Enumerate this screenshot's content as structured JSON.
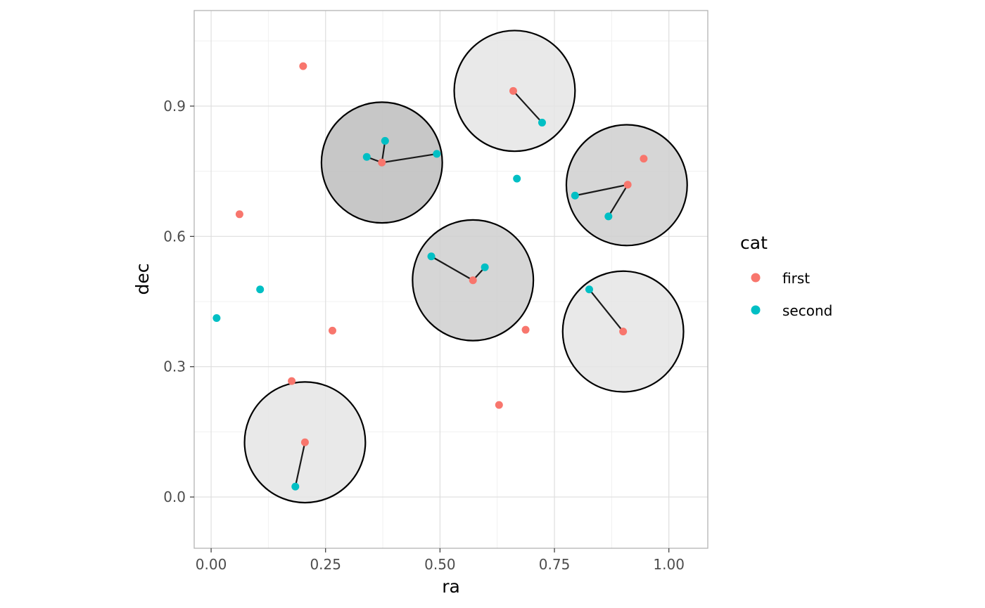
{
  "chart_data": {
    "type": "scatter",
    "xlabel": "ra",
    "ylabel": "dec",
    "xlim": [
      -0.037,
      1.085
    ],
    "ylim": [
      -0.118,
      1.12
    ],
    "x_ticks": [
      {
        "value": 0.0,
        "label": "0.00"
      },
      {
        "value": 0.25,
        "label": "0.25"
      },
      {
        "value": 0.5,
        "label": "0.50"
      },
      {
        "value": 0.75,
        "label": "0.75"
      },
      {
        "value": 1.0,
        "label": "1.00"
      }
    ],
    "y_ticks": [
      {
        "value": 0.0,
        "label": "0.0"
      },
      {
        "value": 0.3,
        "label": "0.3"
      },
      {
        "value": 0.6,
        "label": "0.6"
      },
      {
        "value": 0.9,
        "label": "0.9"
      }
    ],
    "x_minor": [
      0.125,
      0.375,
      0.625,
      0.875
    ],
    "y_minor": [
      0.15,
      0.45,
      0.75,
      1.05
    ],
    "grid": true,
    "legend": {
      "title": "cat",
      "position": "right",
      "entries": [
        {
          "label": "first",
          "color": "#F8766D"
        },
        {
          "label": "second",
          "color": "#00BFC4"
        }
      ]
    },
    "circle_radius": 0.132,
    "circles": [
      {
        "ra": 0.663,
        "dec": 0.935,
        "fill": "#e5e5e5"
      },
      {
        "ra": 0.373,
        "dec": 0.77,
        "fill": "#bdbdbd"
      },
      {
        "ra": 0.908,
        "dec": 0.718,
        "fill": "#cfcfcf"
      },
      {
        "ra": 0.572,
        "dec": 0.499,
        "fill": "#cfcfcf"
      },
      {
        "ra": 0.9,
        "dec": 0.381,
        "fill": "#e5e5e5"
      },
      {
        "ra": 0.205,
        "dec": 0.126,
        "fill": "#e5e5e5"
      }
    ],
    "points": [
      {
        "ra": 0.201,
        "dec": 0.992,
        "cat": "first"
      },
      {
        "ra": 0.062,
        "dec": 0.651,
        "cat": "first"
      },
      {
        "ra": 0.265,
        "dec": 0.383,
        "cat": "first"
      },
      {
        "ra": 0.176,
        "dec": 0.267,
        "cat": "first"
      },
      {
        "ra": 0.629,
        "dec": 0.212,
        "cat": "first"
      },
      {
        "ra": 0.687,
        "dec": 0.385,
        "cat": "first"
      },
      {
        "ra": 0.945,
        "dec": 0.779,
        "cat": "first"
      },
      {
        "ra": 0.66,
        "dec": 0.935,
        "cat": "first"
      },
      {
        "ra": 0.373,
        "dec": 0.77,
        "cat": "first"
      },
      {
        "ra": 0.91,
        "dec": 0.719,
        "cat": "first"
      },
      {
        "ra": 0.572,
        "dec": 0.499,
        "cat": "first"
      },
      {
        "ra": 0.9,
        "dec": 0.381,
        "cat": "first"
      },
      {
        "ra": 0.205,
        "dec": 0.126,
        "cat": "first"
      },
      {
        "ra": 0.668,
        "dec": 0.733,
        "cat": "second"
      },
      {
        "ra": 0.107,
        "dec": 0.478,
        "cat": "second"
      },
      {
        "ra": 0.012,
        "dec": 0.412,
        "cat": "second"
      },
      {
        "ra": 0.723,
        "dec": 0.862,
        "cat": "second"
      },
      {
        "ra": 0.38,
        "dec": 0.82,
        "cat": "second"
      },
      {
        "ra": 0.34,
        "dec": 0.783,
        "cat": "second"
      },
      {
        "ra": 0.493,
        "dec": 0.79,
        "cat": "second"
      },
      {
        "ra": 0.795,
        "dec": 0.694,
        "cat": "second"
      },
      {
        "ra": 0.868,
        "dec": 0.646,
        "cat": "second"
      },
      {
        "ra": 0.481,
        "dec": 0.554,
        "cat": "second"
      },
      {
        "ra": 0.598,
        "dec": 0.529,
        "cat": "second"
      },
      {
        "ra": 0.826,
        "dec": 0.478,
        "cat": "second"
      },
      {
        "ra": 0.184,
        "dec": 0.024,
        "cat": "second"
      }
    ],
    "links": [
      {
        "from": [
          0.66,
          0.935
        ],
        "to": [
          0.723,
          0.862
        ]
      },
      {
        "from": [
          0.373,
          0.77
        ],
        "to": [
          0.38,
          0.82
        ]
      },
      {
        "from": [
          0.373,
          0.77
        ],
        "to": [
          0.34,
          0.783
        ]
      },
      {
        "from": [
          0.373,
          0.77
        ],
        "to": [
          0.493,
          0.79
        ]
      },
      {
        "from": [
          0.91,
          0.719
        ],
        "to": [
          0.795,
          0.694
        ]
      },
      {
        "from": [
          0.91,
          0.719
        ],
        "to": [
          0.868,
          0.646
        ]
      },
      {
        "from": [
          0.572,
          0.499
        ],
        "to": [
          0.481,
          0.554
        ]
      },
      {
        "from": [
          0.572,
          0.499
        ],
        "to": [
          0.598,
          0.529
        ]
      },
      {
        "from": [
          0.9,
          0.381
        ],
        "to": [
          0.826,
          0.478
        ]
      },
      {
        "from": [
          0.205,
          0.126
        ],
        "to": [
          0.184,
          0.024
        ]
      }
    ]
  }
}
